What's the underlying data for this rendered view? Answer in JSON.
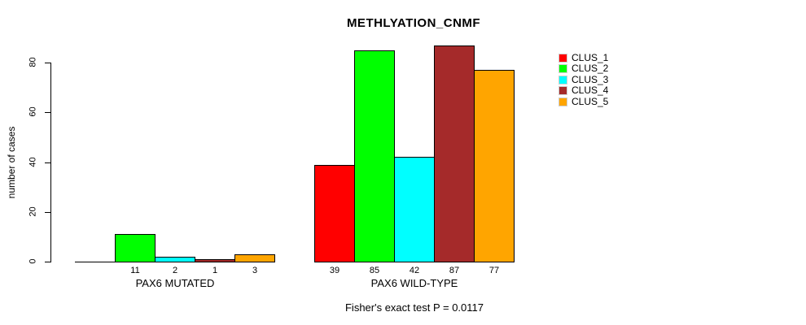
{
  "chart_data": {
    "type": "bar",
    "title": "METHLYATION_CNMF",
    "ylabel": "number of cases",
    "footer": "Fisher's exact test P = 0.0117",
    "ylim": [
      0,
      80
    ],
    "yticks": [
      0,
      20,
      40,
      60,
      80
    ],
    "grid": false,
    "legend_position": "right",
    "categories": [
      "PAX6 MUTATED",
      "PAX6 WILD-TYPE"
    ],
    "series": [
      {
        "name": "CLUS_1",
        "color": "#FF0000",
        "values": [
          0,
          39
        ]
      },
      {
        "name": "CLUS_2",
        "color": "#00FF00",
        "values": [
          11,
          85
        ]
      },
      {
        "name": "CLUS_3",
        "color": "#00FFFF",
        "values": [
          2,
          42
        ]
      },
      {
        "name": "CLUS_4",
        "color": "#A52A2A",
        "values": [
          1,
          87
        ]
      },
      {
        "name": "CLUS_5",
        "color": "#FFA500",
        "values": [
          3,
          77
        ]
      }
    ],
    "bar_value_labels": [
      [
        "",
        "11",
        "2",
        "1",
        "3"
      ],
      [
        "39",
        "85",
        "42",
        "87",
        "77"
      ]
    ],
    "bar_border_color": "#000000",
    "axis_color": "#000000",
    "legend_swatch_border_color": "#cfcfcf"
  }
}
